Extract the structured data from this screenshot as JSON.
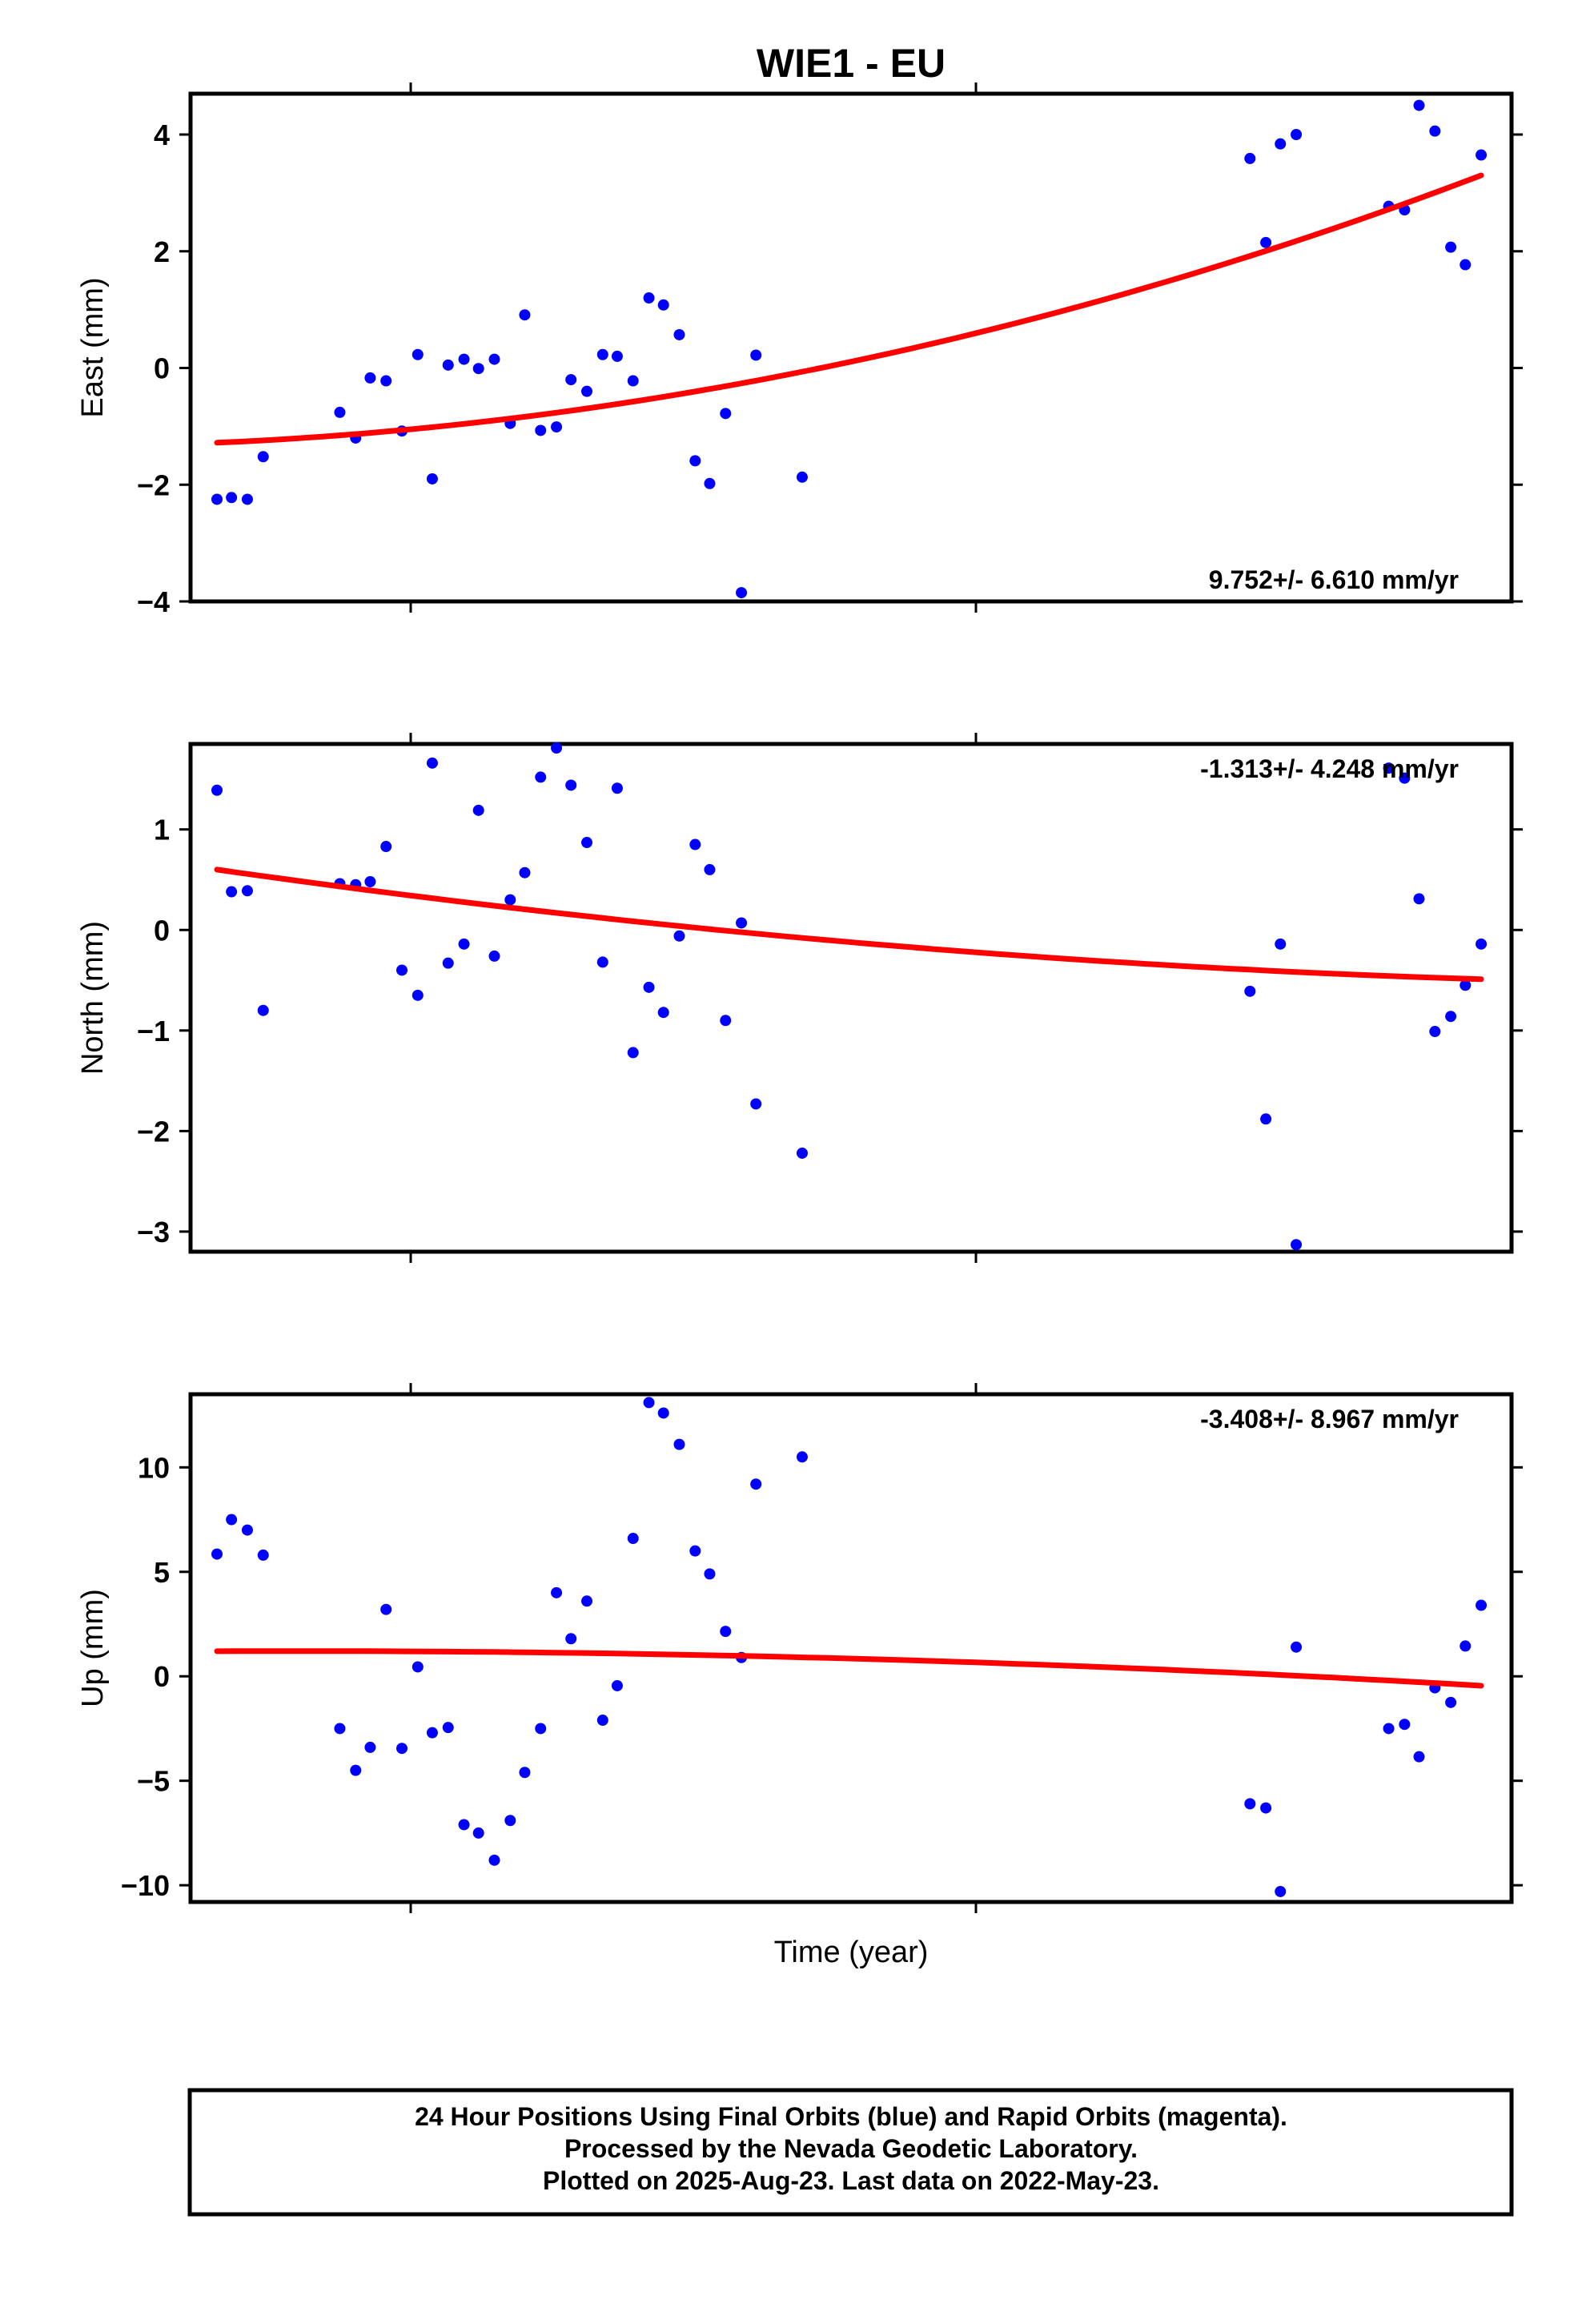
{
  "title": "WIE1 - EU",
  "xlabel": "Time (year)",
  "footer": {
    "line1": "24 Hour Positions Using Final Orbits (blue) and Rapid Orbits (magenta).",
    "line2": "Processed by the Nevada Geodetic Laboratory.",
    "line3": "Plotted on 2025-Aug-23. Last data on 2022-May-23."
  },
  "colors": {
    "points": "#0000ff",
    "fit": "#ff0000",
    "frame": "#000000"
  },
  "chart_data": [
    {
      "type": "scatter",
      "ylabel": "East (mm)",
      "rate": "9.752+/- 6.610 mm/yr",
      "rate_position": "bottom-right",
      "ylim": [
        -4,
        4.7
      ],
      "yticks": [
        -4,
        -2,
        0,
        2,
        4
      ],
      "ytick_labels": [
        "−4",
        "−2",
        "0",
        "2",
        "4"
      ],
      "points": [
        [
          0.02,
          -2.25
        ],
        [
          0.031,
          -2.22
        ],
        [
          0.043,
          -2.25
        ],
        [
          0.055,
          -1.52
        ],
        [
          0.113,
          -0.76
        ],
        [
          0.125,
          -1.2
        ],
        [
          0.136,
          -0.17
        ],
        [
          0.148,
          -0.22
        ],
        [
          0.16,
          -1.08
        ],
        [
          0.172,
          0.23
        ],
        [
          0.183,
          -1.9
        ],
        [
          0.195,
          0.05
        ],
        [
          0.207,
          0.15
        ],
        [
          0.218,
          -0.01
        ],
        [
          0.23,
          0.15
        ],
        [
          0.242,
          -0.95
        ],
        [
          0.253,
          0.91
        ],
        [
          0.265,
          -1.07
        ],
        [
          0.277,
          -1.01
        ],
        [
          0.288,
          -0.2
        ],
        [
          0.3,
          -0.4
        ],
        [
          0.312,
          0.23
        ],
        [
          0.323,
          0.2
        ],
        [
          0.335,
          -0.22
        ],
        [
          0.347,
          1.2
        ],
        [
          0.358,
          1.08
        ],
        [
          0.37,
          0.57
        ],
        [
          0.382,
          -1.59
        ],
        [
          0.393,
          -1.98
        ],
        [
          0.405,
          -0.78
        ],
        [
          0.417,
          -3.85
        ],
        [
          0.428,
          0.22
        ],
        [
          0.463,
          -1.87
        ],
        [
          0.802,
          3.59
        ],
        [
          0.814,
          2.15
        ],
        [
          0.825,
          3.84
        ],
        [
          0.837,
          4.0
        ],
        [
          0.907,
          2.77
        ],
        [
          0.919,
          2.71
        ],
        [
          0.93,
          4.5
        ],
        [
          0.942,
          4.06
        ],
        [
          0.954,
          2.07
        ],
        [
          0.965,
          1.77
        ],
        [
          0.977,
          3.65
        ]
      ],
      "fit": {
        "x_range": [
          0.02,
          0.977
        ],
        "y": [
          -1.28,
          0.1,
          3.3
        ],
        "shape": "quadratic"
      }
    },
    {
      "type": "scatter",
      "ylabel": "North (mm)",
      "rate": "-1.313+/- 4.248 mm/yr",
      "rate_position": "top-right",
      "ylim": [
        -3.2,
        1.85
      ],
      "yticks": [
        -3,
        -2,
        -1,
        0,
        1
      ],
      "ytick_labels": [
        "−3",
        "−2",
        "−1",
        "0",
        "1"
      ],
      "points": [
        [
          0.02,
          1.39
        ],
        [
          0.031,
          0.38
        ],
        [
          0.043,
          0.39
        ],
        [
          0.055,
          -0.8
        ],
        [
          0.113,
          0.46
        ],
        [
          0.125,
          0.45
        ],
        [
          0.136,
          0.48
        ],
        [
          0.148,
          0.83
        ],
        [
          0.16,
          -0.4
        ],
        [
          0.172,
          -0.65
        ],
        [
          0.183,
          1.66
        ],
        [
          0.195,
          -0.33
        ],
        [
          0.207,
          -0.14
        ],
        [
          0.218,
          1.19
        ],
        [
          0.23,
          -0.26
        ],
        [
          0.242,
          0.3
        ],
        [
          0.253,
          0.57
        ],
        [
          0.265,
          1.52
        ],
        [
          0.277,
          1.81
        ],
        [
          0.288,
          1.44
        ],
        [
          0.3,
          0.87
        ],
        [
          0.312,
          -0.32
        ],
        [
          0.323,
          1.41
        ],
        [
          0.335,
          -1.22
        ],
        [
          0.347,
          -0.57
        ],
        [
          0.358,
          -0.82
        ],
        [
          0.37,
          -0.06
        ],
        [
          0.382,
          0.85
        ],
        [
          0.393,
          0.6
        ],
        [
          0.405,
          -0.9
        ],
        [
          0.417,
          0.07
        ],
        [
          0.428,
          -1.73
        ],
        [
          0.463,
          -2.22
        ],
        [
          0.802,
          -0.61
        ],
        [
          0.814,
          -1.88
        ],
        [
          0.825,
          -0.14
        ],
        [
          0.837,
          -3.13
        ],
        [
          0.907,
          1.61
        ],
        [
          0.919,
          1.51
        ],
        [
          0.93,
          0.31
        ],
        [
          0.942,
          -1.01
        ],
        [
          0.954,
          -0.86
        ],
        [
          0.965,
          -0.55
        ],
        [
          0.977,
          -0.14
        ]
      ],
      "fit": {
        "x_range": [
          0.02,
          0.977
        ],
        "y": [
          0.6,
          -0.12,
          -0.49
        ],
        "shape": "quadratic"
      }
    },
    {
      "type": "scatter",
      "ylabel": "Up (mm)",
      "rate": "-3.408+/- 8.967 mm/yr",
      "rate_position": "top-right",
      "ylim": [
        -10.8,
        13.5
      ],
      "yticks": [
        -10,
        -5,
        0,
        5,
        10
      ],
      "ytick_labels": [
        "−10",
        "−5",
        "0",
        "5",
        "10"
      ],
      "points": [
        [
          0.02,
          5.85
        ],
        [
          0.031,
          7.5
        ],
        [
          0.043,
          7.0
        ],
        [
          0.055,
          5.8
        ],
        [
          0.113,
          -2.5
        ],
        [
          0.125,
          -4.5
        ],
        [
          0.136,
          -3.4
        ],
        [
          0.148,
          3.2
        ],
        [
          0.16,
          -3.45
        ],
        [
          0.172,
          0.45
        ],
        [
          0.183,
          -2.7
        ],
        [
          0.195,
          -2.45
        ],
        [
          0.207,
          -7.1
        ],
        [
          0.218,
          -7.5
        ],
        [
          0.23,
          -8.8
        ],
        [
          0.242,
          -6.9
        ],
        [
          0.253,
          -4.6
        ],
        [
          0.265,
          -2.5
        ],
        [
          0.277,
          4.0
        ],
        [
          0.288,
          1.8
        ],
        [
          0.3,
          3.6
        ],
        [
          0.312,
          -2.1
        ],
        [
          0.323,
          -0.45
        ],
        [
          0.335,
          6.6
        ],
        [
          0.347,
          13.1
        ],
        [
          0.358,
          12.6
        ],
        [
          0.37,
          11.1
        ],
        [
          0.382,
          6.0
        ],
        [
          0.393,
          4.9
        ],
        [
          0.405,
          2.15
        ],
        [
          0.417,
          0.9
        ],
        [
          0.428,
          9.2
        ],
        [
          0.463,
          10.5
        ],
        [
          0.802,
          -6.1
        ],
        [
          0.814,
          -6.3
        ],
        [
          0.825,
          -10.3
        ],
        [
          0.837,
          1.4
        ],
        [
          0.907,
          -2.5
        ],
        [
          0.919,
          -2.3
        ],
        [
          0.93,
          -3.85
        ],
        [
          0.942,
          -0.55
        ],
        [
          0.954,
          -1.25
        ],
        [
          0.965,
          1.45
        ],
        [
          0.977,
          3.4
        ]
      ],
      "fit": {
        "x_range": [
          0.02,
          0.977
        ],
        "y": [
          1.2,
          0.85,
          -0.45
        ],
        "shape": "quadratic"
      }
    }
  ]
}
